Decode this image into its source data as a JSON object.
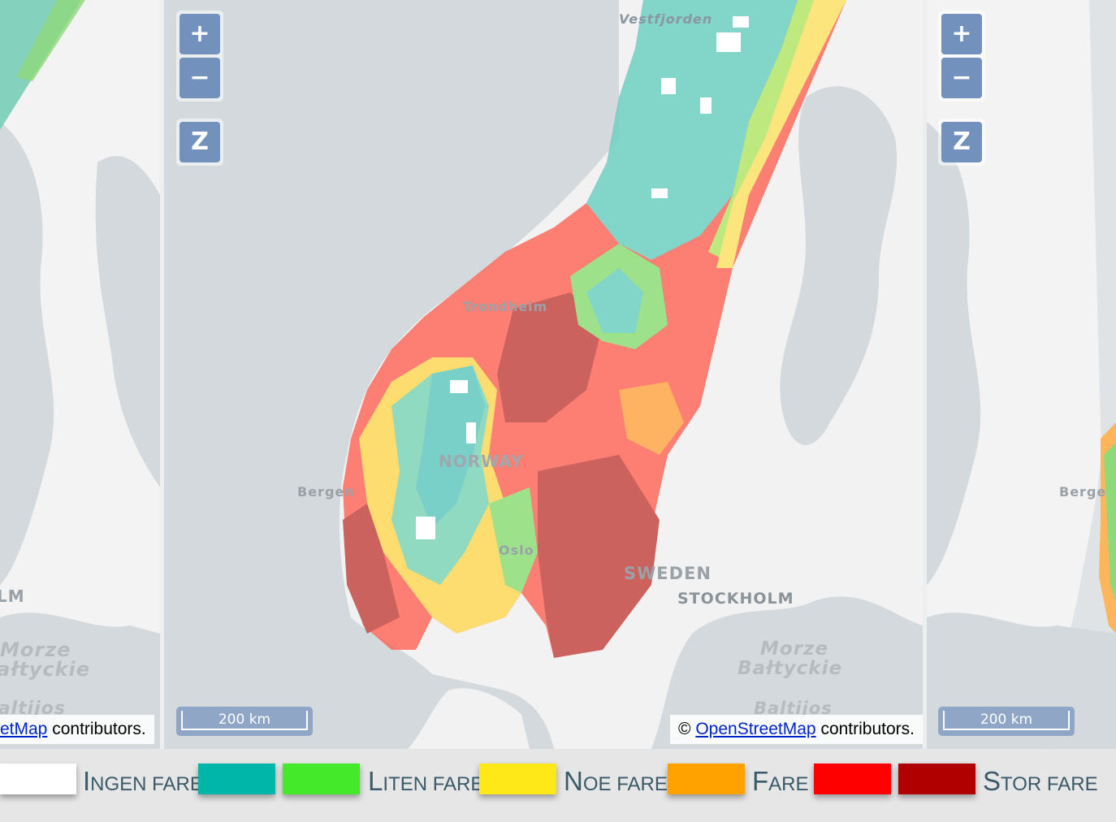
{
  "map_view": {
    "zoom_in_label": "+",
    "zoom_out_label": "−",
    "zoom_reset_label": "Z",
    "scale_label": "200 km",
    "attribution": {
      "prefix": "© ",
      "link_text": "OpenStreetMap",
      "suffix": " contributors."
    },
    "left_attribution": {
      "link_text": "etMap",
      "suffix": " contributors."
    }
  },
  "place_labels": {
    "vestfjorden": "Vestfjorden",
    "trondheim": "Trondheim",
    "norway": "NORWAY",
    "bergen": "Bergen",
    "oslo": "Oslo",
    "sweden": "SWEDEN",
    "stockholm": "STOCKHOLM",
    "stockholm_left": "LM",
    "morze": "Morze",
    "baltyckie": "Bałtyckie",
    "baltijos": "Baltijos",
    "left_morze": "Morze",
    "left_baltyckie": "ałtyckie",
    "left_baltijos": "Baltijos",
    "right_bergen": "Berge"
  },
  "legend": {
    "items": [
      {
        "label_cap": "I",
        "label_rest": "NGEN FARE",
        "colors": [
          "#ffffff"
        ]
      },
      {
        "label_cap": "L",
        "label_rest": "ITEN FARE",
        "colors": [
          "#00b6a8",
          "#44ea2a"
        ]
      },
      {
        "label_cap": "N",
        "label_rest": "OE FARE",
        "colors": [
          "#ffe818"
        ]
      },
      {
        "label_cap": "F",
        "label_rest": "ARE",
        "colors": [
          "#ffa200"
        ]
      },
      {
        "label_cap": "S",
        "label_rest": "TOR FARE",
        "colors": [
          "#ff0000",
          "#b00000"
        ]
      }
    ]
  },
  "colors": {
    "sea": "#d3d9dc",
    "land": "#f2f2f2",
    "control_blue": "#7291bd",
    "link_blue": "#0026c9",
    "legend_text": "#3a5a6a"
  }
}
